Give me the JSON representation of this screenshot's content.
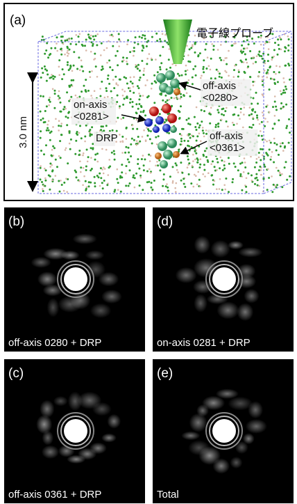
{
  "panel_a": {
    "label": "(a)",
    "probe": "電子線プローブ",
    "scale": "3.0 nm",
    "annotations": [
      {
        "lines": [
          "off-axis",
          "<0280>"
        ]
      },
      {
        "lines": [
          "on-axis",
          "<0281>"
        ]
      },
      {
        "lines": [
          "DRP"
        ]
      },
      {
        "lines": [
          "off-axis",
          "<0361>"
        ]
      }
    ]
  },
  "panels": [
    {
      "label": "(b)",
      "caption": "off-axis 0280 + DRP"
    },
    {
      "label": "(d)",
      "caption": "on-axis 0281 + DRP"
    },
    {
      "label": "(c)",
      "caption": "off-axis 0361 + DRP"
    },
    {
      "label": "(e)",
      "caption": "Total"
    }
  ]
}
